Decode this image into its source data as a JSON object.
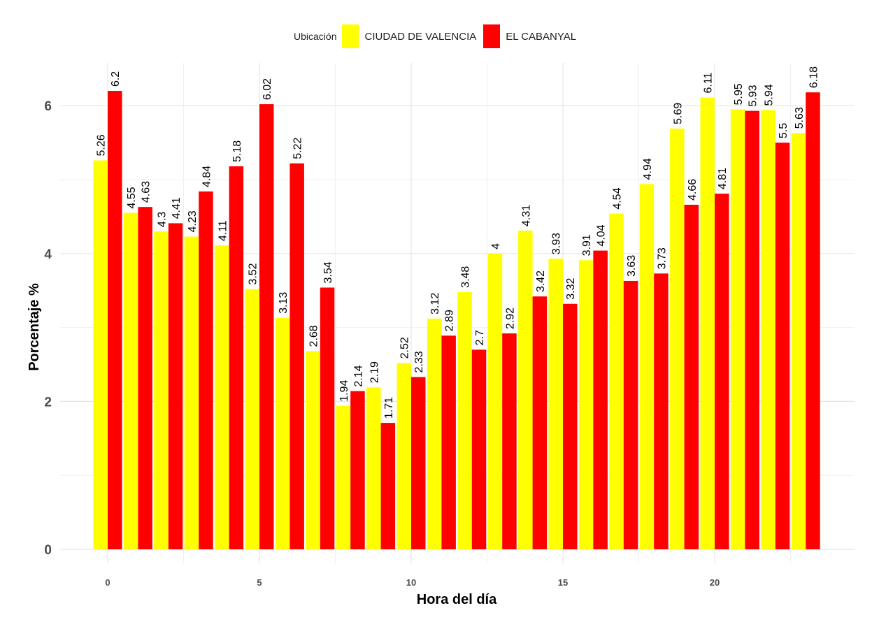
{
  "chart_data": {
    "type": "bar",
    "title": "",
    "xlabel": "Hora del día",
    "ylabel": "Porcentaje %",
    "legend_title": "Ubicación",
    "legend_position": "top",
    "grid": true,
    "x_ticks": [
      0,
      5,
      10,
      15,
      20
    ],
    "y_ticks": [
      0,
      2,
      4,
      6
    ],
    "ylim": [
      0,
      6.4
    ],
    "categories": [
      0,
      1,
      2,
      3,
      4,
      5,
      6,
      7,
      8,
      9,
      10,
      11,
      12,
      13,
      14,
      15,
      16,
      17,
      18,
      19,
      20,
      21,
      22,
      23
    ],
    "series": [
      {
        "name": "CIUDAD DE VALENCIA",
        "color": "#FFFF00",
        "values": [
          5.26,
          4.55,
          4.3,
          4.23,
          4.11,
          3.52,
          3.13,
          2.68,
          1.94,
          2.19,
          2.52,
          3.12,
          3.48,
          4,
          4.31,
          3.93,
          3.91,
          4.54,
          4.94,
          5.69,
          6.11,
          5.95,
          5.94,
          5.63
        ]
      },
      {
        "name": "EL CABANYAL",
        "color": "#FF0000",
        "values": [
          6.2,
          4.63,
          4.41,
          4.84,
          5.18,
          6.02,
          5.22,
          3.54,
          2.14,
          1.71,
          2.33,
          2.89,
          2.7,
          2.92,
          3.42,
          3.32,
          4.04,
          3.63,
          3.73,
          4.66,
          4.81,
          5.93,
          5.5,
          6.18
        ]
      }
    ]
  }
}
